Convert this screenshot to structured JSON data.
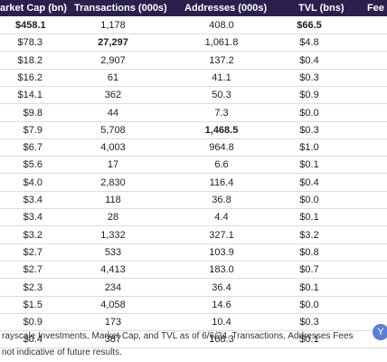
{
  "header": {
    "market_cap": "arket Cap (bn)",
    "transactions": "Transactions (000s)",
    "addresses": "Addresses (000s)",
    "tvl": "TVL (bns)",
    "fees": "Fee"
  },
  "rows": [
    {
      "mcap": "$458.1",
      "tx": "1,178",
      "addr": "408.0",
      "tvl": "$66.5",
      "bold": [
        "mcap",
        "tvl"
      ]
    },
    {
      "mcap": "$78.3",
      "tx": "27,297",
      "addr": "1,061.8",
      "tvl": "$4.8",
      "bold": [
        "tx"
      ]
    },
    {
      "mcap": "$18.2",
      "tx": "2,907",
      "addr": "137.2",
      "tvl": "$0.4",
      "bold": []
    },
    {
      "mcap": "$16.2",
      "tx": "61",
      "addr": "41.1",
      "tvl": "$0.3",
      "bold": []
    },
    {
      "mcap": "$14.1",
      "tx": "362",
      "addr": "50.3",
      "tvl": "$0.9",
      "bold": []
    },
    {
      "mcap": "$9.8",
      "tx": "44",
      "addr": "7.3",
      "tvl": "$0.0",
      "bold": []
    },
    {
      "mcap": "$7.9",
      "tx": "5,708",
      "addr": "1,468.5",
      "tvl": "$0.3",
      "bold": [
        "addr"
      ]
    },
    {
      "mcap": "$6.7",
      "tx": "4,003",
      "addr": "964.8",
      "tvl": "$1.0",
      "bold": []
    },
    {
      "mcap": "$5.6",
      "tx": "17",
      "addr": "6.6",
      "tvl": "$0.1",
      "bold": []
    },
    {
      "mcap": "$4.0",
      "tx": "2,830",
      "addr": "116.4",
      "tvl": "$0.4",
      "bold": []
    },
    {
      "mcap": "$3.4",
      "tx": "118",
      "addr": "36.8",
      "tvl": "$0.0",
      "bold": []
    },
    {
      "mcap": "$3.4",
      "tx": "28",
      "addr": "4.4",
      "tvl": "$0.1",
      "bold": []
    },
    {
      "mcap": "$3.2",
      "tx": "1,332",
      "addr": "327.1",
      "tvl": "$3.2",
      "bold": []
    },
    {
      "mcap": "$2.7",
      "tx": "533",
      "addr": "103.9",
      "tvl": "$0.8",
      "bold": []
    },
    {
      "mcap": "$2.7",
      "tx": "4,413",
      "addr": "183.0",
      "tvl": "$0.7",
      "bold": []
    },
    {
      "mcap": "$2.3",
      "tx": "234",
      "addr": "36.4",
      "tvl": "$0.1",
      "bold": []
    },
    {
      "mcap": "$1.5",
      "tx": "4,058",
      "addr": "14.6",
      "tvl": "$0.0",
      "bold": []
    },
    {
      "mcap": "$0.9",
      "tx": "173",
      "addr": "10.4",
      "tvl": "$0.3",
      "bold": []
    },
    {
      "mcap": "$0.4",
      "tx": "387",
      "addr": "168.3",
      "tvl": "$0.1",
      "bold": []
    }
  ],
  "footnote": {
    "line1": "rayscale Investments, Market Cap, and TVL as of 6/6/24. Transactions, Addresses Fees",
    "line2": "not indicative of future results."
  },
  "corner_icon": "Y"
}
